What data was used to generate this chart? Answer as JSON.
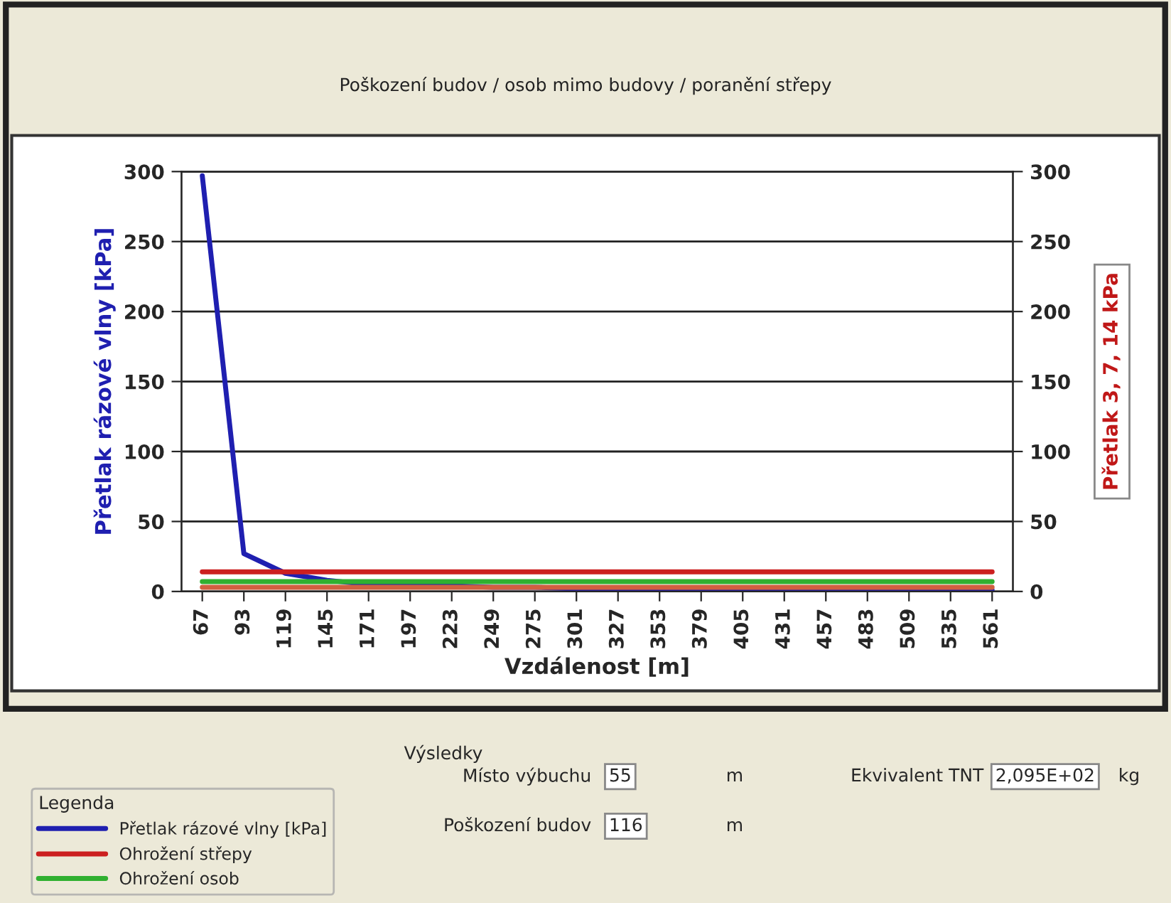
{
  "chart_data": {
    "type": "line",
    "title": "Poškození budov / osob mimo budovy / poranění střepy",
    "xlabel": "Vzdálenost [m]",
    "ylabel": "Přetlak rázové vlny [kPa]",
    "y2label": "Přetlak 3, 7, 14 kPa",
    "legend_title": "Legenda",
    "categories": [
      "67",
      "93",
      "119",
      "145",
      "171",
      "197",
      "223",
      "249",
      "275",
      "301",
      "327",
      "353",
      "379",
      "405",
      "431",
      "457",
      "483",
      "509",
      "535",
      "561"
    ],
    "series": [
      {
        "name": "Přetlak rázové vlny [kPa]",
        "color": "#1f1fb0",
        "values": [
          297,
          27,
          13,
          8,
          5,
          4,
          4,
          3,
          3,
          2,
          2,
          2,
          2,
          2,
          1,
          1,
          1,
          1,
          1,
          1
        ]
      },
      {
        "name": "Ohrožení střepy",
        "color": "#cc2020",
        "values": [
          14,
          14,
          14,
          14,
          14,
          14,
          14,
          14,
          14,
          14,
          14,
          14,
          14,
          14,
          14,
          14,
          14,
          14,
          14,
          14
        ]
      },
      {
        "name": "Ohrožení osob",
        "color": "#30b030",
        "values": [
          7,
          7,
          7,
          7,
          7,
          7,
          7,
          7,
          7,
          7,
          7,
          7,
          7,
          7,
          7,
          7,
          7,
          7,
          7,
          7
        ]
      },
      {
        "color": "#d06040",
        "values": [
          3,
          3,
          3,
          3,
          3,
          3,
          3,
          3,
          3,
          3,
          3,
          3,
          3,
          3,
          3,
          3,
          3,
          3,
          3,
          3
        ]
      }
    ],
    "ylim": [
      0,
      300
    ],
    "yticks": [
      0,
      50,
      100,
      150,
      200,
      250,
      300
    ],
    "y2lim": [
      0,
      300
    ],
    "y2ticks": [
      0,
      50,
      100,
      150,
      200,
      250,
      300
    ],
    "grid": "y",
    "legend": "bottom left",
    "marker": "none",
    "line_style": "solid",
    "annotations": [
      "Výsledky",
      "Místo výbuchu",
      "55",
      "m",
      "Poškození budov",
      "116",
      "m",
      "Ekvivalent TNT",
      "2,095E+02",
      "kg"
    ]
  }
}
